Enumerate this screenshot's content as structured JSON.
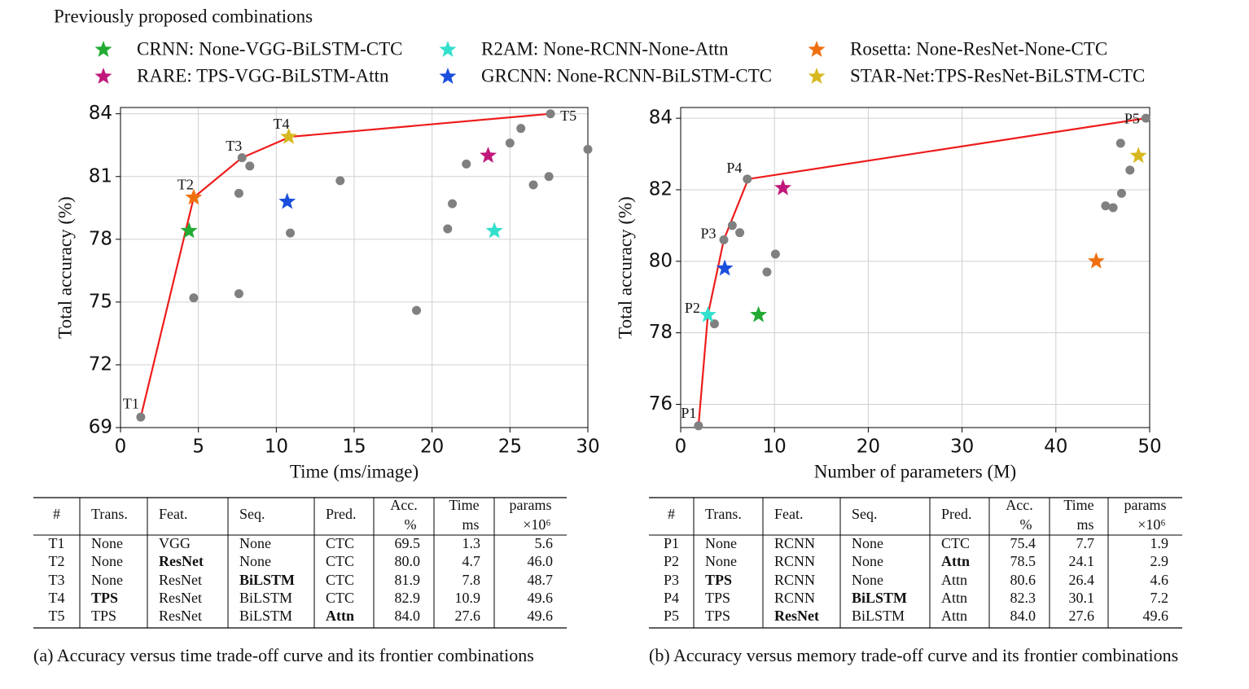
{
  "header": {
    "title": "Previously proposed combinations"
  },
  "legend": [
    {
      "label": "CRNN: None-VGG-BiLSTM-CTC",
      "color": "#22aa33"
    },
    {
      "label": "RARE: TPS-VGG-BiLSTM-Attn",
      "color": "#c0187a"
    },
    {
      "label": "R2AM: None-RCNN-None-Attn",
      "color": "#33e0cc"
    },
    {
      "label": "GRCNN: None-RCNN-BiLSTM-CTC",
      "color": "#1a4fdd"
    },
    {
      "label": "Rosetta: None-ResNet-None-CTC",
      "color": "#f07010"
    },
    {
      "label": "STAR-Net:TPS-ResNet-BiLSTM-CTC",
      "color": "#d8b820"
    }
  ],
  "chart_data": [
    {
      "type": "scatter",
      "x_label": "Time (ms/image)",
      "y_label": "Total accuracy (%)",
      "xlim": [
        0,
        30
      ],
      "ylim": [
        69,
        84.3
      ],
      "xticks": [
        0,
        5,
        10,
        15,
        20,
        25,
        30
      ],
      "yticks": [
        69,
        72,
        75,
        78,
        81,
        84
      ],
      "grid": true,
      "points": {
        "color": "#808080",
        "x": [
          1.3,
          4.7,
          7.6,
          7.6,
          7.8,
          8.3,
          10.9,
          14.1,
          19.0,
          21.0,
          21.3,
          22.2,
          25.0,
          25.7,
          26.5,
          27.5,
          27.6,
          30.0
        ],
        "y": [
          69.5,
          75.2,
          75.4,
          80.2,
          81.9,
          81.5,
          78.3,
          80.8,
          74.6,
          78.5,
          79.7,
          81.6,
          82.6,
          83.3,
          80.6,
          81.0,
          84.0,
          82.3
        ]
      },
      "frontier": {
        "color": "#ee1c1c",
        "labels": [
          "T1",
          "T2",
          "T3",
          "T4",
          "T5"
        ],
        "x": [
          1.3,
          4.7,
          7.8,
          10.9,
          27.6
        ],
        "y": [
          69.5,
          80.0,
          81.9,
          82.9,
          84.0
        ]
      },
      "stars": {
        "x": [
          4.4,
          23.6,
          24.0,
          10.7,
          4.7,
          10.8
        ],
        "y": [
          78.4,
          82.0,
          78.4,
          79.8,
          80.0,
          82.9
        ]
      }
    },
    {
      "type": "scatter",
      "x_label": "Number of parameters (M)",
      "y_label": "Total accuracy (%)",
      "xlim": [
        0,
        50
      ],
      "ylim": [
        75.35,
        84.3
      ],
      "xticks": [
        0,
        10,
        20,
        30,
        40,
        50
      ],
      "yticks": [
        76,
        78,
        80,
        82,
        84
      ],
      "grid": true,
      "points": {
        "color": "#808080",
        "x": [
          1.9,
          3.6,
          4.6,
          5.5,
          6.3,
          7.1,
          9.2,
          10.1,
          45.3,
          46.1,
          47.0,
          47.9,
          46.9,
          49.6
        ],
        "y": [
          75.4,
          78.25,
          80.6,
          81.0,
          80.8,
          82.3,
          79.7,
          80.2,
          81.55,
          81.5,
          81.9,
          82.55,
          83.3,
          84.0
        ]
      },
      "frontier": {
        "color": "#ee1c1c",
        "labels": [
          "P1",
          "P2",
          "P3",
          "P4",
          "P5"
        ],
        "x": [
          1.9,
          2.9,
          4.6,
          7.2,
          49.6
        ],
        "y": [
          75.4,
          78.5,
          80.6,
          82.3,
          84.0
        ]
      },
      "stars": {
        "x": [
          8.3,
          10.9,
          2.9,
          4.7,
          44.3,
          48.8
        ],
        "y": [
          78.5,
          82.05,
          78.5,
          79.8,
          80.0,
          82.95
        ]
      }
    }
  ],
  "tables": [
    {
      "header": [
        "#",
        "Trans.",
        "Feat.",
        "Seq.",
        "Pred.",
        {
          "text": "Acc.",
          "unit": "%"
        },
        {
          "text": "Time",
          "unit": "ms"
        },
        {
          "text": "params",
          "unit": "×10⁶"
        }
      ],
      "rows": [
        [
          "T1",
          "None",
          "VGG",
          "None",
          "CTC",
          "69.5",
          "1.3",
          "5.6"
        ],
        [
          "T2",
          "None",
          "ResNet",
          "None",
          "CTC",
          "80.0",
          "4.7",
          "46.0"
        ],
        [
          "T3",
          "None",
          "ResNet",
          "BiLSTM",
          "CTC",
          "81.9",
          "7.8",
          "48.7"
        ],
        [
          "T4",
          "TPS",
          "ResNet",
          "BiLSTM",
          "CTC",
          "82.9",
          "10.9",
          "49.6"
        ],
        [
          "T5",
          "TPS",
          "ResNet",
          "BiLSTM",
          "Attn",
          "84.0",
          "27.6",
          "49.6"
        ]
      ],
      "bold": [
        [
          1,
          2
        ],
        [
          2,
          3
        ],
        [
          3,
          1
        ],
        [
          4,
          4
        ]
      ]
    },
    {
      "header": [
        "#",
        "Trans.",
        "Feat.",
        "Seq.",
        "Pred.",
        {
          "text": "Acc.",
          "unit": "%"
        },
        {
          "text": "Time",
          "unit": "ms"
        },
        {
          "text": "params",
          "unit": "×10⁶"
        }
      ],
      "rows": [
        [
          "P1",
          "None",
          "RCNN",
          "None",
          "CTC",
          "75.4",
          "7.7",
          "1.9"
        ],
        [
          "P2",
          "None",
          "RCNN",
          "None",
          "Attn",
          "78.5",
          "24.1",
          "2.9"
        ],
        [
          "P3",
          "TPS",
          "RCNN",
          "None",
          "Attn",
          "80.6",
          "26.4",
          "4.6"
        ],
        [
          "P4",
          "TPS",
          "RCNN",
          "BiLSTM",
          "Attn",
          "82.3",
          "30.1",
          "7.2"
        ],
        [
          "P5",
          "TPS",
          "ResNet",
          "BiLSTM",
          "Attn",
          "84.0",
          "27.6",
          "49.6"
        ]
      ],
      "bold": [
        [
          1,
          4
        ],
        [
          2,
          1
        ],
        [
          3,
          3
        ],
        [
          4,
          2
        ]
      ]
    }
  ],
  "captions": [
    "(a) Accuracy versus time trade-off curve and its frontier combinations",
    "(b) Accuracy versus memory trade-off curve and its frontier combinations"
  ]
}
